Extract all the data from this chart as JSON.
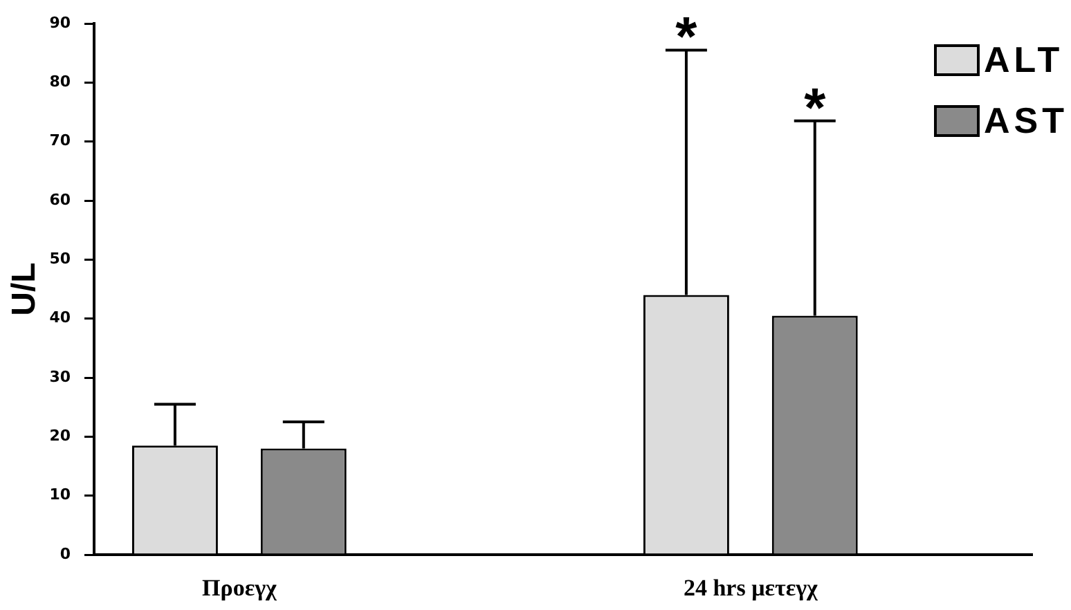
{
  "chart_data": {
    "type": "bar",
    "ylabel": "U/L",
    "categories": [
      "Προεγχ",
      "24 hrs μετεγχ"
    ],
    "series": [
      {
        "name": "ALT",
        "color": "#dcdcdc",
        "values": [
          18.5,
          44
        ],
        "errors": [
          [
            18.5,
            25.5
          ],
          [
            44,
            85.5
          ]
        ]
      },
      {
        "name": "AST",
        "color": "#8a8a8a",
        "values": [
          18,
          40.5
        ],
        "errors": [
          [
            18,
            22.5
          ],
          [
            40.5,
            73.5
          ]
        ]
      }
    ],
    "ylim": [
      0,
      90
    ],
    "yticks": [
      0,
      10,
      20,
      30,
      40,
      50,
      60,
      70,
      80,
      90
    ],
    "grid": false,
    "legend": "top right",
    "annotations": [
      "*",
      "*"
    ]
  }
}
